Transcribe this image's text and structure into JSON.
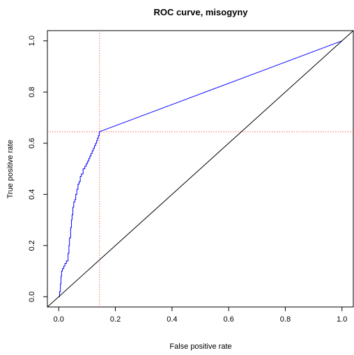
{
  "chart_data": {
    "type": "line",
    "title": "ROC curve, misogyny",
    "xlabel": "False positive rate",
    "ylabel": "True positive rate",
    "xlim": [
      -0.04,
      1.04
    ],
    "ylim": [
      -0.04,
      1.04
    ],
    "x_ticks": [
      0.0,
      0.2,
      0.4,
      0.6,
      0.8,
      1.0
    ],
    "x_tick_labels": [
      "0.0",
      "0.2",
      "0.4",
      "0.6",
      "0.8",
      "1.0"
    ],
    "y_ticks": [
      0.0,
      0.2,
      0.4,
      0.6,
      0.8,
      1.0
    ],
    "y_tick_labels": [
      "0.0",
      "0.2",
      "0.4",
      "0.6",
      "0.8",
      "1.0"
    ],
    "grid": false,
    "legend": "none",
    "series": [
      {
        "color": "#0000ff",
        "style": "step",
        "x": [
          0.0,
          0.003,
          0.006,
          0.008,
          0.01,
          0.013,
          0.018,
          0.022,
          0.027,
          0.033,
          0.036,
          0.038,
          0.042,
          0.045,
          0.047,
          0.05,
          0.053,
          0.057,
          0.06,
          0.064,
          0.068,
          0.072,
          0.076,
          0.08,
          0.086,
          0.092,
          0.097,
          0.102,
          0.106,
          0.11,
          0.114,
          0.118,
          0.122,
          0.126,
          0.13,
          0.134,
          0.137,
          0.14,
          0.143,
          0.144,
          1.0
        ],
        "y": [
          0.0,
          0.02,
          0.05,
          0.08,
          0.1,
          0.11,
          0.12,
          0.13,
          0.14,
          0.17,
          0.2,
          0.23,
          0.27,
          0.3,
          0.32,
          0.35,
          0.37,
          0.38,
          0.4,
          0.42,
          0.44,
          0.45,
          0.47,
          0.48,
          0.5,
          0.51,
          0.52,
          0.53,
          0.54,
          0.55,
          0.56,
          0.57,
          0.58,
          0.59,
          0.6,
          0.61,
          0.62,
          0.63,
          0.64,
          0.645,
          1.0
        ]
      },
      {
        "color": "#000000",
        "style": "line",
        "x": [
          -0.04,
          1.04
        ],
        "y": [
          -0.04,
          1.04
        ]
      }
    ],
    "annotations": {
      "threshold_x": 0.144,
      "threshold_y": 0.645,
      "threshold_color": "#ff6b6b"
    }
  }
}
